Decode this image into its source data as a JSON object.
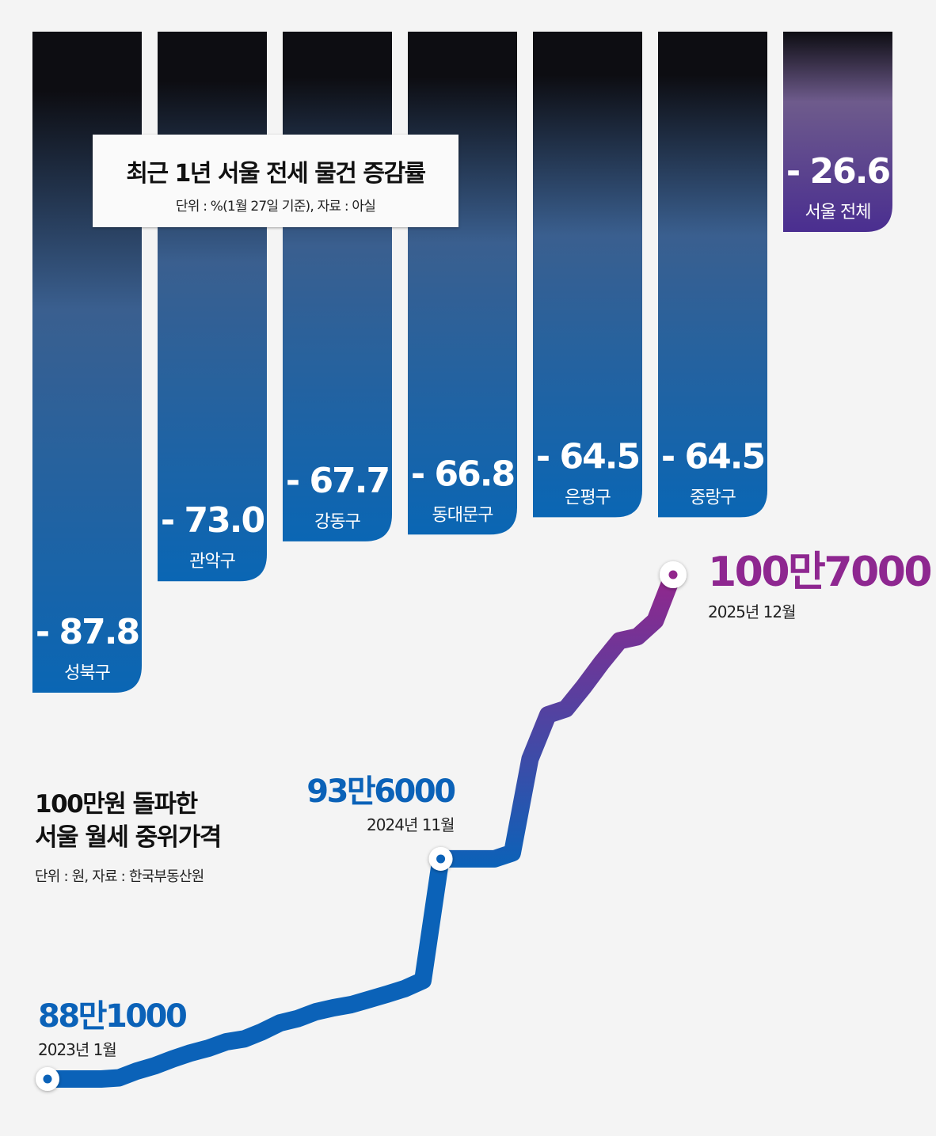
{
  "bar_title": "최근 1년 서울 전세 물건 증감률",
  "bar_subtitle": "단위 : %(1월 27일 기준), 자료 : 아실",
  "line_title": "100만원 돌파한\n서울 월세 중위가격",
  "line_subtitle": "단위 : 원, 자료 : 한국부동산원",
  "colors": {
    "bar_blue": "#0a66b4",
    "bar_dark": "#0d0d12",
    "bar_purple": "#4a2e90",
    "line_start": "#0b62b8",
    "line_end": "#92268c",
    "label_blue": "#0b62b8",
    "label_purple": "#8e2790",
    "background": "#f4f4f4"
  },
  "chart_data": [
    {
      "type": "bar",
      "title": "최근 1년 서울 전세 물건 증감률",
      "unit": "%",
      "categories": [
        "성북구",
        "관악구",
        "강동구",
        "동대문구",
        "은평구",
        "중랑구",
        "서울 전체"
      ],
      "values": [
        -87.8,
        -73.0,
        -67.7,
        -66.8,
        -64.5,
        -64.5,
        -26.6
      ],
      "value_labels": [
        "- 87.8",
        "- 73.0",
        "- 67.7",
        "- 66.8",
        "- 64.5",
        "- 64.5",
        "- 26.6"
      ],
      "highlight": "서울 전체"
    },
    {
      "type": "line",
      "title": "100만원 돌파한 서울 월세 중위가격",
      "unit": "원",
      "x": [
        "2023-01",
        "2023-02",
        "2023-03",
        "2023-04",
        "2023-05",
        "2023-06",
        "2023-07",
        "2023-08",
        "2023-09",
        "2023-10",
        "2023-11",
        "2023-12",
        "2024-01",
        "2024-02",
        "2024-03",
        "2024-04",
        "2024-05",
        "2024-06",
        "2024-07",
        "2024-08",
        "2024-09",
        "2024-10",
        "2024-11",
        "2024-12",
        "2025-01",
        "2025-02",
        "2025-03",
        "2025-04",
        "2025-05",
        "2025-06",
        "2025-07",
        "2025-08",
        "2025-09",
        "2025-10",
        "2025-11",
        "2025-12"
      ],
      "values": [
        881000,
        881000,
        881000,
        881000,
        881300,
        883000,
        884300,
        886000,
        887500,
        888700,
        890300,
        891000,
        892800,
        895000,
        896100,
        897800,
        898800,
        899600,
        900900,
        902200,
        903600,
        905600,
        936000,
        936000,
        936000,
        936000,
        937500,
        961000,
        972000,
        973500,
        979000,
        985000,
        990500,
        991500,
        995500,
        1007000
      ],
      "annotations": [
        {
          "x": "2023-01",
          "value_label": "88만1000",
          "date_label": "2023년 1월"
        },
        {
          "x": "2024-11",
          "value_label": "93만6000",
          "date_label": "2024년 11월"
        },
        {
          "x": "2025-12",
          "value_label": "100만7000",
          "date_label": "2025년 12월"
        }
      ]
    }
  ]
}
